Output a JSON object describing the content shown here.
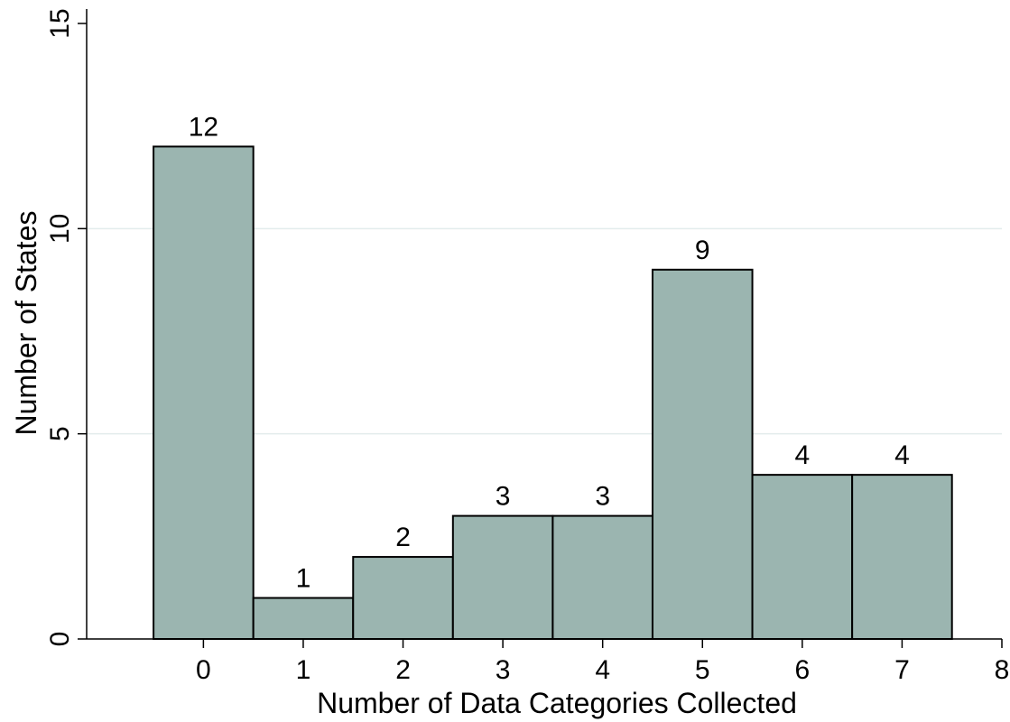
{
  "chart_data": {
    "type": "bar",
    "categories": [
      0,
      1,
      2,
      3,
      4,
      5,
      6,
      7
    ],
    "values": [
      12,
      1,
      2,
      3,
      3,
      9,
      4,
      4
    ],
    "data_labels": [
      "12",
      "1",
      "2",
      "3",
      "3",
      "9",
      "4",
      "4"
    ],
    "title": "",
    "xlabel": "Number of Data Categories Collected",
    "ylabel": "Number of States",
    "xlim": [
      -1.17,
      8
    ],
    "ylim": [
      0,
      15
    ],
    "x_ticks": [
      "0",
      "1",
      "2",
      "3",
      "4",
      "5",
      "6",
      "7",
      "8"
    ],
    "y_ticks": [
      "0",
      "5",
      "10",
      "15"
    ],
    "grid": true,
    "bar_color": "#9bb5b0",
    "grid_color": "#e3ecec"
  }
}
